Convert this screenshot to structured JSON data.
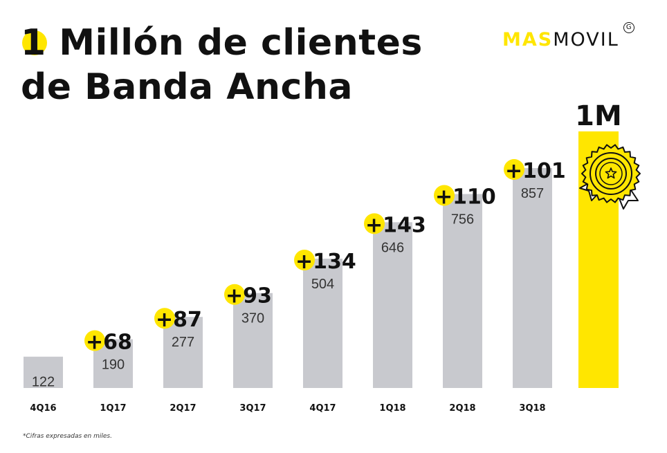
{
  "header": {
    "title_num": "1",
    "title_line1_rest": "Millón de clientes",
    "title_line2": "de Banda Ancha",
    "brand_part1": "MAS",
    "brand_part2": "MOVIL",
    "brand_badge": "G"
  },
  "footnote": "*Cifras expresadas en miles.",
  "colors": {
    "bar": "#c8c9ce",
    "highlight": "#ffe600",
    "text": "#111111"
  },
  "chart_data": {
    "type": "bar",
    "categories": [
      "4Q16",
      "1Q17",
      "2Q17",
      "3Q17",
      "4Q17",
      "1Q18",
      "2Q18",
      "3Q18"
    ],
    "values": [
      122,
      190,
      277,
      370,
      504,
      646,
      756,
      857
    ],
    "increments": [
      "+68",
      "+87",
      "+93",
      "+134",
      "+143",
      "+110",
      "+101"
    ],
    "target": {
      "label": "1M",
      "value": 1000
    },
    "ylim": [
      0,
      1000
    ],
    "xlabel": "",
    "ylabel": "",
    "grid": false,
    "legend": "none"
  }
}
